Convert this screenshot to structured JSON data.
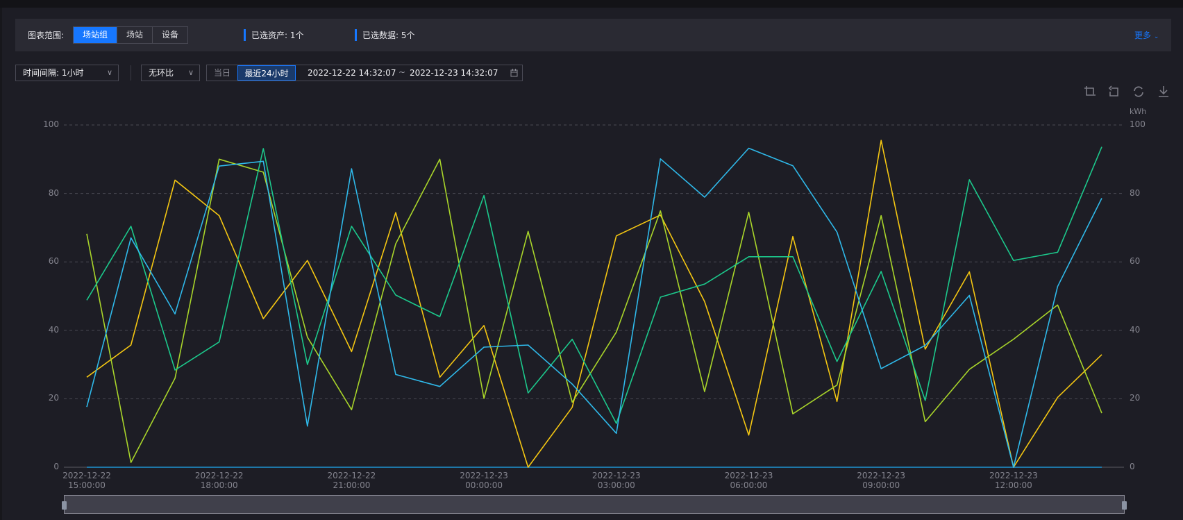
{
  "filter": {
    "range_label": "图表范围:",
    "range_options": [
      {
        "label": "场站组",
        "active": true
      },
      {
        "label": "场站",
        "active": false
      },
      {
        "label": "设备",
        "active": false
      }
    ],
    "selected_assets": "已选资产: 1个",
    "selected_data": "已选数据: 5个",
    "more_label": "更多",
    "accent": "#1677ff"
  },
  "controls": {
    "interval": "时间间隔: 1小时",
    "compare": "无环比",
    "today_label": "当日",
    "last24_label": "最近24小时",
    "start": "2022-12-22 14:32:07",
    "separator": "~",
    "end": "2022-12-23 14:32:07"
  },
  "toolbar": {
    "icons": [
      "zoom-select-icon",
      "zoom-reset-icon",
      "restore-icon",
      "download-icon"
    ]
  },
  "chart_data": {
    "type": "line",
    "y_unit": "kWh",
    "ylim": [
      0,
      100
    ],
    "y_ticks": [
      0,
      20,
      40,
      60,
      80,
      100
    ],
    "grid": true,
    "x": [
      "2022-12-22 15:00:00",
      "2022-12-22 16:00:00",
      "2022-12-22 17:00:00",
      "2022-12-22 18:00:00",
      "2022-12-22 19:00:00",
      "2022-12-22 20:00:00",
      "2022-12-22 21:00:00",
      "2022-12-22 22:00:00",
      "2022-12-22 23:00:00",
      "2022-12-23 00:00:00",
      "2022-12-23 01:00:00",
      "2022-12-23 02:00:00",
      "2022-12-23 03:00:00",
      "2022-12-23 04:00:00",
      "2022-12-23 05:00:00",
      "2022-12-23 06:00:00",
      "2022-12-23 07:00:00",
      "2022-12-23 08:00:00",
      "2022-12-23 09:00:00",
      "2022-12-23 10:00:00",
      "2022-12-23 11:00:00",
      "2022-12-23 12:00:00",
      "2022-12-23 13:00:00",
      "2022-12-23 14:00:00"
    ],
    "x_tick_labels": [
      "2022-12-22 15:00:00",
      "2022-12-22 18:00:00",
      "2022-12-22 21:00:00",
      "2022-12-23 00:00:00",
      "2022-12-23 03:00:00",
      "2022-12-23 06:00:00",
      "2022-12-23 09:00:00",
      "2022-12-23 12:00:00"
    ],
    "series": [
      {
        "color": "#2fb9ea",
        "values": [
          17.6,
          67,
          44.8,
          88,
          89.4,
          12,
          87.2,
          27.1,
          23.6,
          35.1,
          35.7,
          24.3,
          9.9,
          90.1,
          78.9,
          93.2,
          88.1,
          68.7,
          28.8,
          35.6,
          50.2,
          0,
          52.8,
          78.6
        ]
      },
      {
        "color": "#1cc98c",
        "values": [
          48.8,
          70.4,
          28.4,
          36.6,
          93.1,
          30,
          70.4,
          50.3,
          44,
          79.4,
          21.7,
          37.4,
          12.8,
          49.7,
          53.5,
          61.5,
          61.5,
          30.9,
          57.2,
          19.5,
          84,
          60.4,
          62.8,
          93.6
        ]
      },
      {
        "color": "#a9d52a",
        "values": [
          68.2,
          1.4,
          26,
          90,
          86.2,
          38,
          16.8,
          65.3,
          90,
          20.1,
          68.9,
          19,
          39.5,
          74.9,
          22.1,
          74.5,
          15.6,
          24,
          73.5,
          13.3,
          28.6,
          37.4,
          47.4,
          15.8
        ]
      },
      {
        "color": "#f5c712",
        "values": [
          26.3,
          35.7,
          83.9,
          73.5,
          43.4,
          60.4,
          33.8,
          74.4,
          26.3,
          41.4,
          0,
          17.5,
          67.6,
          73.7,
          48.4,
          9.4,
          67.4,
          19.2,
          95.5,
          34.5,
          57.1,
          0,
          20.4,
          32.9
        ]
      },
      {
        "color": "#1e95d4",
        "values": [
          0,
          0,
          0,
          0,
          0,
          0,
          0,
          0,
          0,
          0,
          0,
          0,
          0,
          0,
          0,
          0,
          0,
          0,
          0,
          0,
          0,
          0,
          0,
          0
        ]
      }
    ]
  }
}
